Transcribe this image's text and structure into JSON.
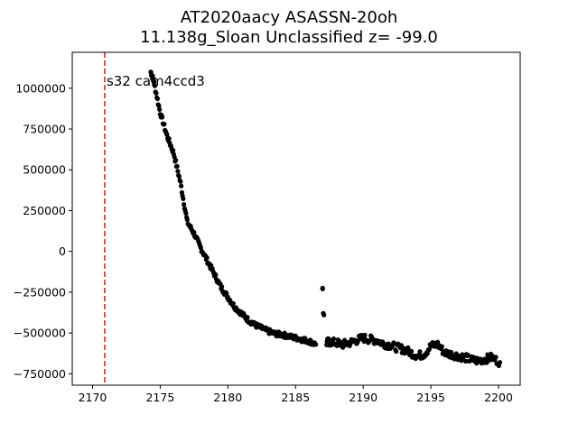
{
  "title_line1": "AT2020aacy  ASASSN-20oh",
  "title_line2": "11.138g_Sloan Unclassified z= -99.0",
  "annotation": "s32 cam4ccd3",
  "chart_data": {
    "type": "scatter",
    "title": "AT2020aacy  ASASSN-20oh\n11.138g_Sloan Unclassified z= -99.0",
    "xlabel": "",
    "ylabel": "",
    "xlim": [
      2168.5,
      2201.6
    ],
    "ylim": [
      -820000,
      1220000
    ],
    "xticks": [
      2170,
      2175,
      2180,
      2185,
      2190,
      2195,
      2200
    ],
    "xtick_labels": [
      "2170",
      "2175",
      "2180",
      "2185",
      "2190",
      "2195",
      "2200"
    ],
    "yticks": [
      -750000,
      -500000,
      -250000,
      0,
      250000,
      500000,
      750000,
      1000000
    ],
    "ytick_labels": [
      "−750000",
      "−500000",
      "−250000",
      "0",
      "250000",
      "500000",
      "750000",
      "1000000"
    ],
    "marker_color": "#000000",
    "vline": {
      "x": 2170.9,
      "color": "#d62728",
      "style": "dashed",
      "label": "s32 cam4ccd3"
    },
    "curve_x": [
      2174.3,
      2174.5,
      2175.0,
      2175.5,
      2176.0,
      2176.5,
      2177.0,
      2177.5,
      2178.0,
      2178.5,
      2179.0,
      2179.5,
      2180.0,
      2180.5,
      2181.0,
      2181.5,
      2182.0,
      2182.5,
      2183.0,
      2183.5,
      2184.0,
      2184.5,
      2185.0,
      2185.5,
      2186.0,
      2186.5
    ],
    "curve_y": [
      1100000,
      1050000,
      850000,
      710000,
      600000,
      420000,
      180000,
      110000,
      20000,
      -60000,
      -140000,
      -220000,
      -280000,
      -340000,
      -380000,
      -420000,
      -450000,
      -470000,
      -490000,
      -505000,
      -510000,
      -520000,
      -530000,
      -540000,
      -550000,
      -570000
    ],
    "tail_x": [
      2187.3,
      2187.5,
      2188.0,
      2188.5,
      2189.0,
      2189.5,
      2190.0,
      2190.5,
      2191.0,
      2191.5,
      2192.0,
      2192.5,
      2193.0,
      2193.5,
      2194.0,
      2194.5,
      2195.0,
      2195.5,
      2196.0,
      2196.5,
      2197.0,
      2197.5,
      2198.0,
      2198.5,
      2199.0,
      2199.5,
      2200.1
    ],
    "tail_y": [
      -560000,
      -555000,
      -560000,
      -570000,
      -560000,
      -545000,
      -530000,
      -540000,
      -545000,
      -565000,
      -575000,
      -590000,
      -600000,
      -620000,
      -640000,
      -630000,
      -580000,
      -570000,
      -620000,
      -630000,
      -640000,
      -650000,
      -665000,
      -670000,
      -660000,
      -650000,
      -680000
    ],
    "outliers": [
      {
        "x": 2187.0,
        "y": -230000
      },
      {
        "x": 2187.0,
        "y": -225000
      },
      {
        "x": 2187.05,
        "y": -380000
      },
      {
        "x": 2187.1,
        "y": -390000
      }
    ]
  }
}
